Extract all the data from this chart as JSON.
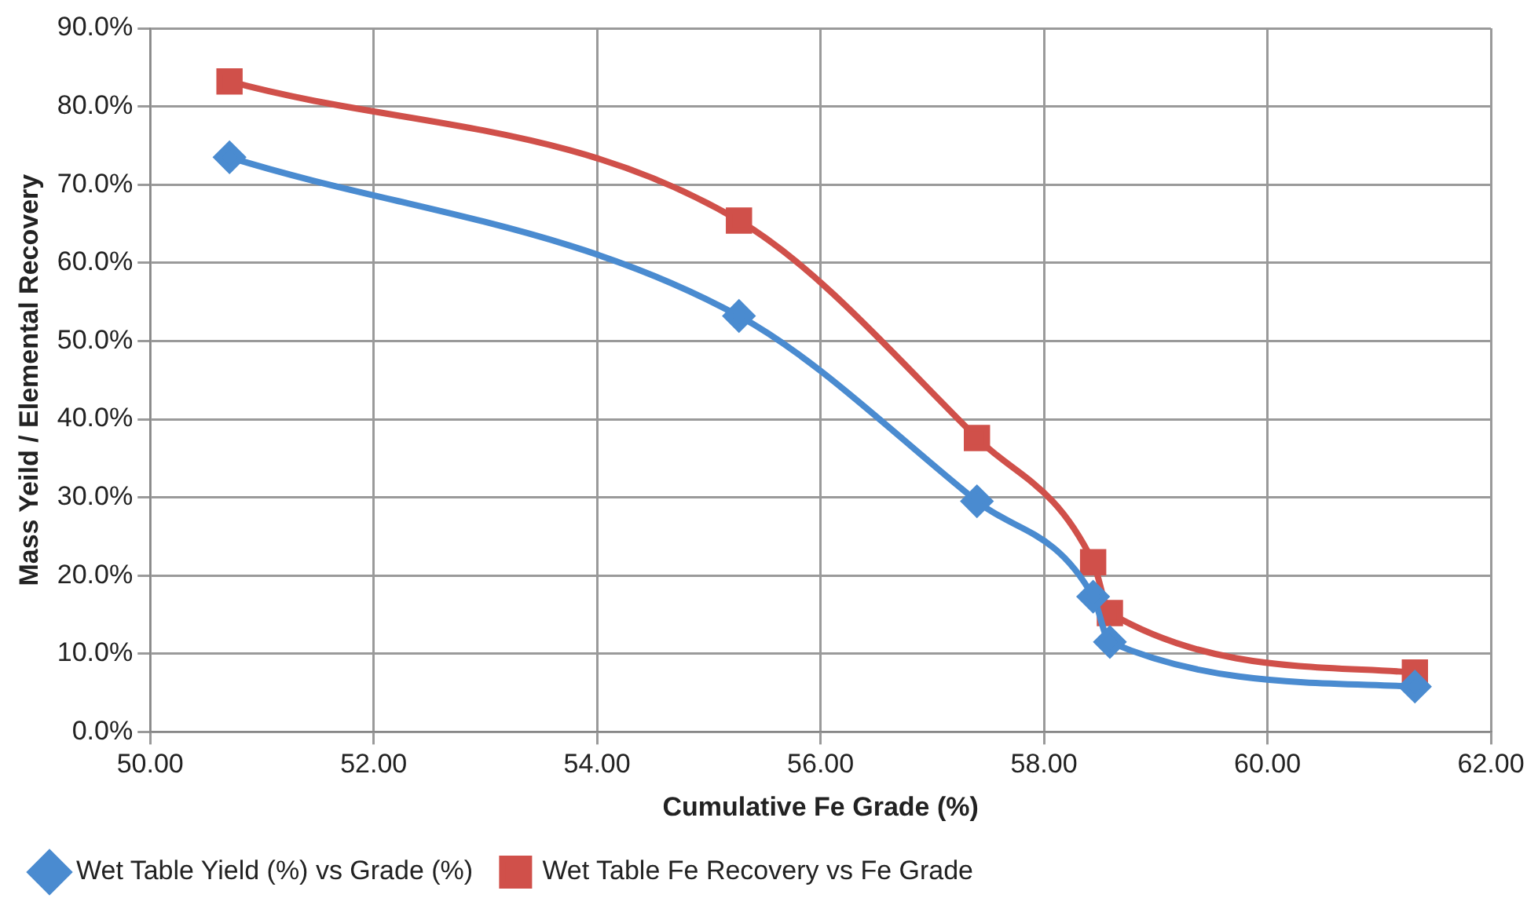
{
  "chart_data": {
    "type": "line",
    "xlabel": "Cumulative Fe Grade (%)",
    "ylabel": "Mass Yeild / Elemental Recovery",
    "x": [
      50.71,
      55.27,
      57.4,
      58.44,
      58.59,
      61.32
    ],
    "series": [
      {
        "name": "Wet Table Yield (%) vs Grade (%)",
        "color": "#4a8bd0",
        "marker": "diamond",
        "values": [
          73.5,
          53.2,
          29.5,
          17.3,
          11.5,
          5.8
        ]
      },
      {
        "name": "Wet Table Fe Recovery vs Fe Grade",
        "color": "#d0504a",
        "marker": "square",
        "values": [
          83.2,
          65.4,
          37.6,
          21.7,
          15.2,
          7.6
        ]
      }
    ],
    "xlim": [
      50,
      62
    ],
    "xticks": [
      {
        "value": 50,
        "label": "50.00"
      },
      {
        "value": 52,
        "label": "52.00"
      },
      {
        "value": 54,
        "label": "54.00"
      },
      {
        "value": 56,
        "label": "56.00"
      },
      {
        "value": 58,
        "label": "58.00"
      },
      {
        "value": 60,
        "label": "60.00"
      },
      {
        "value": 62,
        "label": "62.00"
      }
    ],
    "ylim": [
      0,
      90
    ],
    "yticks": [
      {
        "value": 0,
        "label": "0.0%"
      },
      {
        "value": 10,
        "label": "10.0%"
      },
      {
        "value": 20,
        "label": "20.0%"
      },
      {
        "value": 30,
        "label": "30.0%"
      },
      {
        "value": 40,
        "label": "40.0%"
      },
      {
        "value": 50,
        "label": "50.0%"
      },
      {
        "value": 60,
        "label": "60.0%"
      },
      {
        "value": 70,
        "label": "70.0%"
      },
      {
        "value": 80,
        "label": "80.0%"
      },
      {
        "value": 90,
        "label": "90.0%"
      }
    ],
    "grid": true,
    "legend": "bottom",
    "line_style": "solid"
  }
}
